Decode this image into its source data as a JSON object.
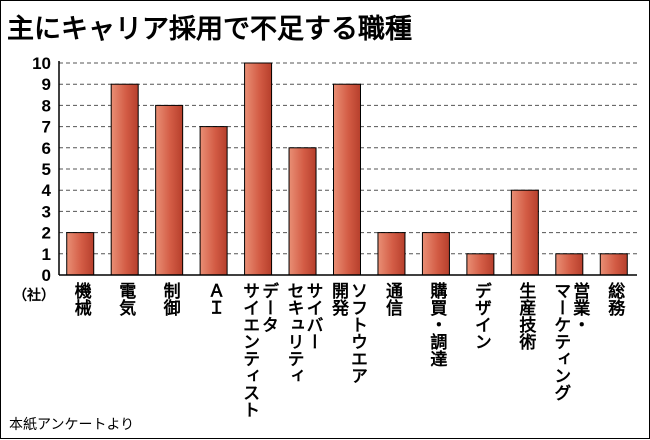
{
  "chart_data": {
    "type": "bar",
    "title": "主にキャリア採用で不足する職種",
    "ylabel": "（社）",
    "ylim": [
      0,
      10
    ],
    "yticks": [
      "0",
      "1",
      "2",
      "3",
      "4",
      "5",
      "6",
      "7",
      "8",
      "9",
      "10"
    ],
    "grid": true,
    "bar_color": "#d9604a",
    "categories": [
      "機械",
      "電気",
      "制御",
      "ＡＩ",
      "データ\nサイエンティスト",
      "サイバー\nセキュリティ",
      "ソフトウエア\n開発",
      "通信",
      "購買・調達",
      "デザイン",
      "生産技術",
      "営業・\nマーケティング",
      "総務"
    ],
    "values": [
      2,
      9,
      8,
      7,
      10,
      6,
      9,
      2,
      2,
      1,
      4,
      1,
      1
    ]
  },
  "source": "本紙アンケートより"
}
